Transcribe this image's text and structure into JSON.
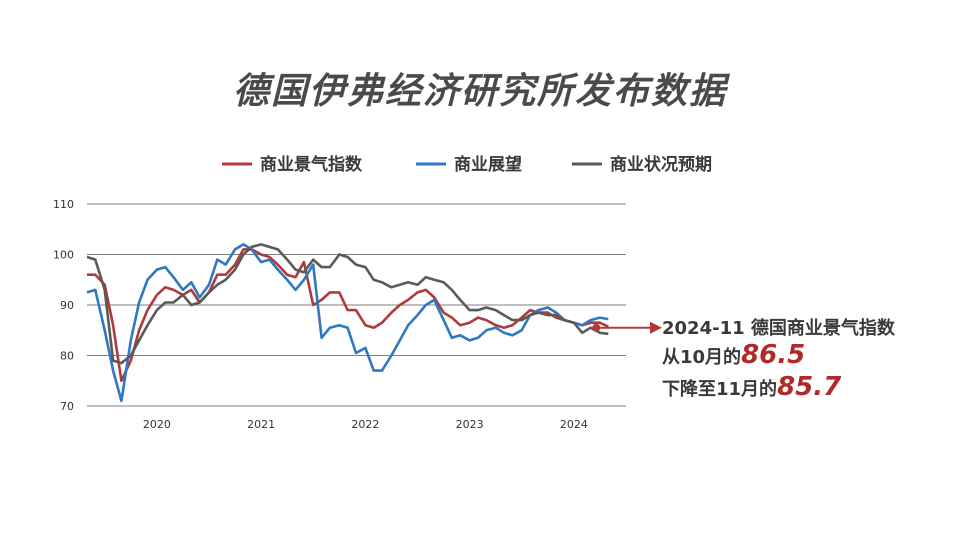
{
  "page": {
    "title": "德国伊弗经济研究所发布数据"
  },
  "colors": {
    "business_climate": "#b03a3a",
    "expectations": "#2e78c4",
    "current_situation": "#5a5a5a",
    "grid": "#555555"
  },
  "chart_data": {
    "type": "line",
    "title": "",
    "xlabel": "",
    "ylabel": "",
    "ylim": [
      70,
      110
    ],
    "yticks": [
      "70",
      "80",
      "90",
      "100",
      "110"
    ],
    "xlim": [
      2019.75,
      2024.92
    ],
    "xticks": [
      {
        "label": "2020",
        "value": 2020.42
      },
      {
        "label": "2021",
        "value": 2021.42
      },
      {
        "label": "2022",
        "value": 2022.42
      },
      {
        "label": "2023",
        "value": 2023.42
      },
      {
        "label": "2024",
        "value": 2024.42
      }
    ],
    "grid": true,
    "legend": "top",
    "series": [
      {
        "name": "商业景气指数",
        "color": "#b03a3a",
        "points": [
          [
            2019.75,
            96
          ],
          [
            2019.83,
            96
          ],
          [
            2019.92,
            94
          ],
          [
            2020.0,
            86
          ],
          [
            2020.08,
            75
          ],
          [
            2020.17,
            79
          ],
          [
            2020.25,
            85
          ],
          [
            2020.33,
            89
          ],
          [
            2020.42,
            92
          ],
          [
            2020.5,
            93.5
          ],
          [
            2020.58,
            93
          ],
          [
            2020.67,
            92
          ],
          [
            2020.75,
            93
          ],
          [
            2020.83,
            90.5
          ],
          [
            2020.92,
            92.5
          ],
          [
            2021.0,
            96
          ],
          [
            2021.08,
            96
          ],
          [
            2021.17,
            98
          ],
          [
            2021.25,
            101
          ],
          [
            2021.33,
            101
          ],
          [
            2021.42,
            100
          ],
          [
            2021.5,
            99.5
          ],
          [
            2021.58,
            98
          ],
          [
            2021.67,
            96
          ],
          [
            2021.75,
            95.5
          ],
          [
            2021.83,
            98.5
          ],
          [
            2021.92,
            90
          ],
          [
            2022.0,
            91
          ],
          [
            2022.08,
            92.5
          ],
          [
            2022.17,
            92.5
          ],
          [
            2022.25,
            89
          ],
          [
            2022.33,
            89
          ],
          [
            2022.42,
            86
          ],
          [
            2022.5,
            85.5
          ],
          [
            2022.58,
            86.5
          ],
          [
            2022.67,
            88.5
          ],
          [
            2022.75,
            90
          ],
          [
            2022.83,
            91
          ],
          [
            2022.92,
            92.5
          ],
          [
            2023.0,
            93
          ],
          [
            2023.08,
            91.5
          ],
          [
            2023.17,
            88.5
          ],
          [
            2023.25,
            87.5
          ],
          [
            2023.33,
            86
          ],
          [
            2023.42,
            86.5
          ],
          [
            2023.5,
            87.5
          ],
          [
            2023.58,
            87
          ],
          [
            2023.67,
            86
          ],
          [
            2023.75,
            85.5
          ],
          [
            2023.83,
            86
          ],
          [
            2023.92,
            87.5
          ],
          [
            2024.0,
            89
          ],
          [
            2024.08,
            88.5
          ],
          [
            2024.17,
            88.5
          ],
          [
            2024.25,
            87.5
          ],
          [
            2024.33,
            87
          ],
          [
            2024.42,
            86.5
          ],
          [
            2024.5,
            86
          ],
          [
            2024.58,
            86.5
          ],
          [
            2024.67,
            86.5
          ],
          [
            2024.75,
            85.7
          ]
        ]
      },
      {
        "name": "商业展望",
        "color": "#2e78c4",
        "points": [
          [
            2019.75,
            92.5
          ],
          [
            2019.83,
            93
          ],
          [
            2019.92,
            85
          ],
          [
            2020.0,
            77
          ],
          [
            2020.08,
            71
          ],
          [
            2020.17,
            83
          ],
          [
            2020.25,
            90.5
          ],
          [
            2020.33,
            95
          ],
          [
            2020.42,
            97
          ],
          [
            2020.5,
            97.5
          ],
          [
            2020.58,
            95.5
          ],
          [
            2020.67,
            93
          ],
          [
            2020.75,
            94.5
          ],
          [
            2020.83,
            91.5
          ],
          [
            2020.92,
            94
          ],
          [
            2021.0,
            99
          ],
          [
            2021.08,
            98
          ],
          [
            2021.17,
            101
          ],
          [
            2021.25,
            102
          ],
          [
            2021.33,
            101
          ],
          [
            2021.42,
            98.5
          ],
          [
            2021.5,
            99
          ],
          [
            2021.58,
            97
          ],
          [
            2021.67,
            95
          ],
          [
            2021.75,
            93
          ],
          [
            2021.83,
            95
          ],
          [
            2021.92,
            98
          ],
          [
            2022.0,
            83.5
          ],
          [
            2022.08,
            85.5
          ],
          [
            2022.17,
            86
          ],
          [
            2022.25,
            85.5
          ],
          [
            2022.33,
            80.5
          ],
          [
            2022.42,
            81.5
          ],
          [
            2022.5,
            77
          ],
          [
            2022.58,
            77
          ],
          [
            2022.67,
            80
          ],
          [
            2022.75,
            83
          ],
          [
            2022.83,
            86
          ],
          [
            2022.92,
            88
          ],
          [
            2023.0,
            90
          ],
          [
            2023.08,
            91
          ],
          [
            2023.17,
            87
          ],
          [
            2023.25,
            83.5
          ],
          [
            2023.33,
            84
          ],
          [
            2023.42,
            83
          ],
          [
            2023.5,
            83.5
          ],
          [
            2023.58,
            85
          ],
          [
            2023.67,
            85.5
          ],
          [
            2023.75,
            84.5
          ],
          [
            2023.83,
            84
          ],
          [
            2023.92,
            85
          ],
          [
            2024.0,
            88
          ],
          [
            2024.08,
            89
          ],
          [
            2024.17,
            89.5
          ],
          [
            2024.25,
            88.5
          ],
          [
            2024.33,
            87
          ],
          [
            2024.42,
            86.5
          ],
          [
            2024.5,
            86
          ],
          [
            2024.58,
            87
          ],
          [
            2024.67,
            87.5
          ],
          [
            2024.75,
            87.2
          ]
        ]
      },
      {
        "name": "商业状况预期",
        "color": "#5a5a5a",
        "points": [
          [
            2019.75,
            99.5
          ],
          [
            2019.83,
            99
          ],
          [
            2019.92,
            93
          ],
          [
            2020.0,
            79
          ],
          [
            2020.08,
            78.5
          ],
          [
            2020.17,
            80
          ],
          [
            2020.25,
            83
          ],
          [
            2020.33,
            86
          ],
          [
            2020.42,
            89
          ],
          [
            2020.5,
            90.5
          ],
          [
            2020.58,
            90.5
          ],
          [
            2020.67,
            92
          ],
          [
            2020.75,
            90
          ],
          [
            2020.83,
            90.5
          ],
          [
            2020.92,
            92.5
          ],
          [
            2021.0,
            94
          ],
          [
            2021.08,
            95
          ],
          [
            2021.17,
            97
          ],
          [
            2021.25,
            100
          ],
          [
            2021.33,
            101.5
          ],
          [
            2021.42,
            102
          ],
          [
            2021.5,
            101.5
          ],
          [
            2021.58,
            101
          ],
          [
            2021.67,
            99
          ],
          [
            2021.75,
            97
          ],
          [
            2021.83,
            96.5
          ],
          [
            2021.92,
            99
          ],
          [
            2022.0,
            97.5
          ],
          [
            2022.08,
            97.5
          ],
          [
            2022.17,
            100
          ],
          [
            2022.25,
            99.5
          ],
          [
            2022.33,
            98
          ],
          [
            2022.42,
            97.5
          ],
          [
            2022.5,
            95
          ],
          [
            2022.58,
            94.5
          ],
          [
            2022.67,
            93.5
          ],
          [
            2022.75,
            94
          ],
          [
            2022.83,
            94.5
          ],
          [
            2022.92,
            94
          ],
          [
            2023.0,
            95.5
          ],
          [
            2023.08,
            95
          ],
          [
            2023.17,
            94.5
          ],
          [
            2023.25,
            93
          ],
          [
            2023.33,
            91
          ],
          [
            2023.42,
            89
          ],
          [
            2023.5,
            89
          ],
          [
            2023.58,
            89.5
          ],
          [
            2023.67,
            89
          ],
          [
            2023.75,
            88
          ],
          [
            2023.83,
            87
          ],
          [
            2023.92,
            87
          ],
          [
            2024.0,
            88
          ],
          [
            2024.08,
            88.5
          ],
          [
            2024.17,
            88
          ],
          [
            2024.25,
            88
          ],
          [
            2024.33,
            87
          ],
          [
            2024.42,
            86.5
          ],
          [
            2024.5,
            84.5
          ],
          [
            2024.58,
            85.5
          ],
          [
            2024.67,
            84.5
          ],
          [
            2024.75,
            84.3
          ]
        ]
      }
    ],
    "annotation": {
      "marker_x": 2024.75,
      "marker_y": 85.7,
      "line1": "2024-11 德国商业景气指数",
      "line2_prefix": "从10月的",
      "line2_value": "86.5",
      "line3_prefix": "下降至11月的",
      "line3_value": "85.7"
    }
  }
}
